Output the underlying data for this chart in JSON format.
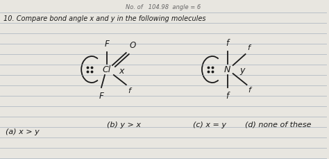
{
  "bg_color": "#e8e6e0",
  "line_color": "#9aa8b8",
  "ink_color": "#1a1a1a",
  "fig_width": 4.74,
  "fig_height": 2.29,
  "dpi": 100,
  "top_faint": "No. of   104.98  angle = 6",
  "title_line": "10. Compare bond angle x and y in the following molecules",
  "opt_a": "(a) x > y",
  "opt_b": "(b) y > x",
  "opt_c": "(c) x = y",
  "opt_d": "(d) none of these"
}
